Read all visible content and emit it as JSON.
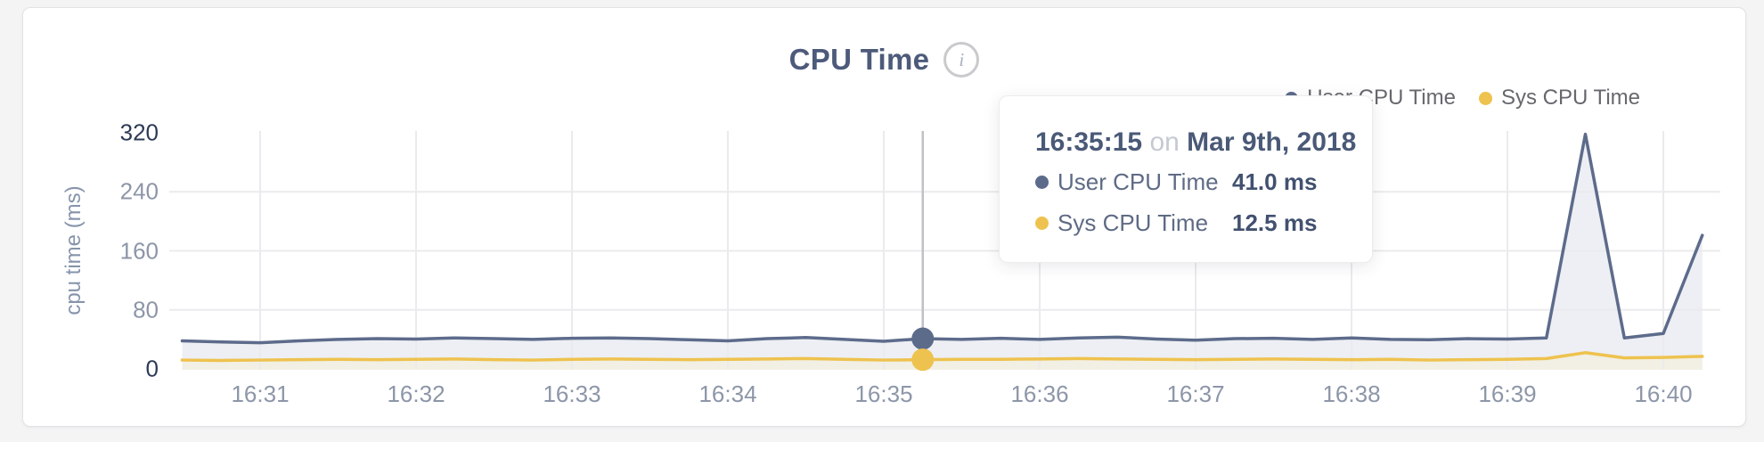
{
  "page": {
    "background": "#f4f4f5"
  },
  "card": {
    "background": "#ffffff",
    "border_color": "#e3e3e6"
  },
  "header": {
    "title": "CPU Time",
    "info_icon": "i"
  },
  "legend": {
    "items": [
      {
        "label": "User CPU Time",
        "color": "#5d6b8b"
      },
      {
        "label": "Sys CPU Time",
        "color": "#eec24e"
      }
    ]
  },
  "tooltip": {
    "time": "16:35:15",
    "connector": "on",
    "date": "Mar 9th, 2018",
    "rows": [
      {
        "label": "User CPU Time",
        "value": "41.0 ms",
        "color": "#5d6b8b"
      },
      {
        "label": "Sys CPU Time",
        "value": "12.5 ms",
        "color": "#eec24e"
      }
    ]
  },
  "chart_data": {
    "type": "area",
    "title": "CPU Time",
    "ylabel": "cpu time (ms)",
    "ylim": [
      0,
      320
    ],
    "y_ticks": [
      0,
      80,
      160,
      240,
      320
    ],
    "x_ticks": [
      "16:31",
      "16:32",
      "16:33",
      "16:34",
      "16:35",
      "16:36",
      "16:37",
      "16:38",
      "16:39",
      "16:40"
    ],
    "grid": true,
    "legend_position": "top-right",
    "hover": {
      "time": "16:35:15",
      "user_ms": 41.0,
      "sys_ms": 12.5,
      "crosshair_color": "#c0c1c6"
    },
    "x": [
      "16:30:30",
      "16:30:45",
      "16:31:00",
      "16:31:15",
      "16:31:30",
      "16:31:45",
      "16:32:00",
      "16:32:15",
      "16:32:30",
      "16:32:45",
      "16:33:00",
      "16:33:15",
      "16:33:30",
      "16:33:45",
      "16:34:00",
      "16:34:15",
      "16:34:30",
      "16:34:45",
      "16:35:00",
      "16:35:15",
      "16:35:30",
      "16:35:45",
      "16:36:00",
      "16:36:15",
      "16:36:30",
      "16:36:45",
      "16:37:00",
      "16:37:15",
      "16:37:30",
      "16:37:45",
      "16:38:00",
      "16:38:15",
      "16:38:30",
      "16:38:45",
      "16:39:00",
      "16:39:15",
      "16:39:30",
      "16:39:45",
      "16:40:00",
      "16:40:15"
    ],
    "series": [
      {
        "name": "User CPU Time",
        "color": "#5d6b8b",
        "fill": "#edeff4",
        "values": [
          38,
          36.5,
          35.5,
          38,
          40,
          41,
          40.5,
          42,
          41,
          40,
          41.5,
          42,
          41,
          39.5,
          38,
          41,
          42.5,
          40,
          37.5,
          41,
          40,
          41.5,
          40,
          42,
          43,
          40.5,
          39,
          41,
          41.5,
          40,
          42,
          40,
          39.5,
          41,
          40.5,
          42,
          318,
          42,
          48,
          181
        ]
      },
      {
        "name": "Sys CPU Time",
        "color": "#eec24e",
        "fill": "#f2efe4",
        "values": [
          12,
          11.5,
          12,
          12.5,
          13,
          12.5,
          13,
          13.5,
          12.5,
          12,
          13,
          13.5,
          13,
          12.5,
          13,
          13.5,
          14,
          13,
          12,
          12.5,
          13,
          13,
          13.5,
          14,
          13.5,
          13,
          12.5,
          13,
          13.5,
          13,
          12.5,
          13,
          12,
          12.5,
          13,
          14,
          22,
          15,
          15.5,
          17
        ]
      }
    ],
    "gridline_color": "#ebebee"
  }
}
